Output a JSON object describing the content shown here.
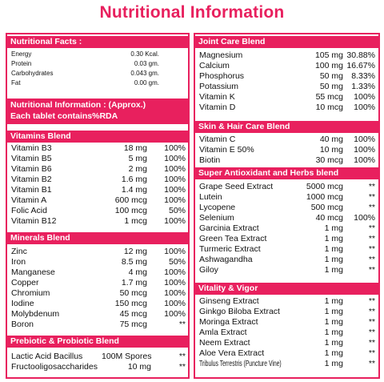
{
  "title": "Nutritional Information",
  "left": {
    "facts": {
      "header": "Nutritional Facts :",
      "rows": [
        {
          "name": "Energy",
          "amount": "0.30 Kcal."
        },
        {
          "name": "Protein",
          "amount": "0.03 gm."
        },
        {
          "name": "Carbohydrates",
          "amount": "0.043 gm."
        },
        {
          "name": "Fat",
          "amount": "0.00 gm."
        }
      ]
    },
    "info": {
      "line1": "Nutritional Information : (Approx.)",
      "line2": "Each tablet contains%RDA"
    },
    "vitamins": {
      "header": "Vitamins Blend",
      "rows": [
        {
          "name": "Vitamin B3",
          "amount": "18 mg",
          "rda": "100%"
        },
        {
          "name": "Vitamin B5",
          "amount": "5 mg",
          "rda": "100%"
        },
        {
          "name": "Vitamin B6",
          "amount": "2 mg",
          "rda": "100%"
        },
        {
          "name": "Vitamin B2",
          "amount": "1.6 mg",
          "rda": "100%"
        },
        {
          "name": "Vitamin B1",
          "amount": "1.4 mg",
          "rda": "100%"
        },
        {
          "name": "Vitamin A",
          "amount": "600 mcg",
          "rda": "100%"
        },
        {
          "name": "Folic Acid",
          "amount": "100 mcg",
          "rda": "50%"
        },
        {
          "name": "Vitamin B12",
          "amount": "1 mcg",
          "rda": "100%"
        }
      ]
    },
    "minerals": {
      "header": "Minerals Blend",
      "rows": [
        {
          "name": "Zinc",
          "amount": "12 mg",
          "rda": "100%"
        },
        {
          "name": "Iron",
          "amount": "8.5 mg",
          "rda": "50%"
        },
        {
          "name": "Manganese",
          "amount": "4 mg",
          "rda": "100%"
        },
        {
          "name": "Copper",
          "amount": "1.7 mg",
          "rda": "100%"
        },
        {
          "name": "Chromium",
          "amount": "50 mcg",
          "rda": "100%"
        },
        {
          "name": "Iodine",
          "amount": "150 mcg",
          "rda": "100%"
        },
        {
          "name": "Molybdenum",
          "amount": "45 mcg",
          "rda": "100%"
        },
        {
          "name": "Boron",
          "amount": "75 mcg",
          "rda": "**"
        }
      ]
    },
    "prebiotic": {
      "header": "Prebiotic & Probiotic Blend",
      "rows": [
        {
          "name": "Lactic Acid Bacillus",
          "amount": "100M Spores",
          "rda": "**"
        },
        {
          "name": "Fructooligosaccharides",
          "amount": "10 mg",
          "rda": "**"
        }
      ]
    }
  },
  "right": {
    "joint": {
      "header": "Joint Care Blend",
      "rows": [
        {
          "name": "Magnesium",
          "amount": "105 mg",
          "rda": "30.88%"
        },
        {
          "name": "Calcium",
          "amount": "100 mg",
          "rda": "16.67%"
        },
        {
          "name": "Phosphorus",
          "amount": "50 mg",
          "rda": "8.33%"
        },
        {
          "name": "Potassium",
          "amount": "50 mg",
          "rda": "1.33%"
        },
        {
          "name": "Vitamin K",
          "amount": "55 mcg",
          "rda": "100%"
        },
        {
          "name": "Vitamin D",
          "amount": "10 mcg",
          "rda": "100%"
        }
      ]
    },
    "skin": {
      "header": "Skin & Hair Care Blend",
      "rows": [
        {
          "name": "Vitamin C",
          "amount": "40 mg",
          "rda": "100%"
        },
        {
          "name": "Vitamin E 50%",
          "amount": "10 mg",
          "rda": "100%"
        },
        {
          "name": "Biotin",
          "amount": "30 mcg",
          "rda": "100%"
        }
      ]
    },
    "antioxidant": {
      "header": "Super Antioxidant and Herbs blend",
      "rows": [
        {
          "name": "Grape Seed Extract",
          "amount": "5000 mcg",
          "rda": "**"
        },
        {
          "name": "Lutein",
          "amount": "1000 mcg",
          "rda": "**"
        },
        {
          "name": "Lycopene",
          "amount": "500 mcg",
          "rda": "**"
        },
        {
          "name": "Selenium",
          "amount": "40 mcg",
          "rda": "100%"
        },
        {
          "name": "Garcinia Extract",
          "amount": "1 mg",
          "rda": "**"
        },
        {
          "name": "Green Tea Extract",
          "amount": "1 mg",
          "rda": "**"
        },
        {
          "name": "Turmeric Extract",
          "amount": "1 mg",
          "rda": "**"
        },
        {
          "name": "Ashwagandha",
          "amount": "1 mg",
          "rda": "**"
        },
        {
          "name": "Giloy",
          "amount": "1 mg",
          "rda": "**"
        }
      ]
    },
    "vitality": {
      "header": "Vitality & Vigor",
      "rows": [
        {
          "name": "Ginseng Extract",
          "amount": "1 mg",
          "rda": "**"
        },
        {
          "name": "Ginkgo Biloba Extract",
          "amount": "1 mg",
          "rda": "**"
        },
        {
          "name": "Moringa Extract",
          "amount": "1 mg",
          "rda": "**"
        },
        {
          "name": "Amla Extract",
          "amount": "1 mg",
          "rda": "**"
        },
        {
          "name": "Neem Extract",
          "amount": "1 mg",
          "rda": "**"
        },
        {
          "name": "Aloe Vera Extract",
          "amount": "1 mg",
          "rda": "**"
        },
        {
          "name": "Tribulus Terrestris (Puncture Vine)",
          "amount": "1 mg",
          "rda": "**"
        }
      ]
    }
  }
}
